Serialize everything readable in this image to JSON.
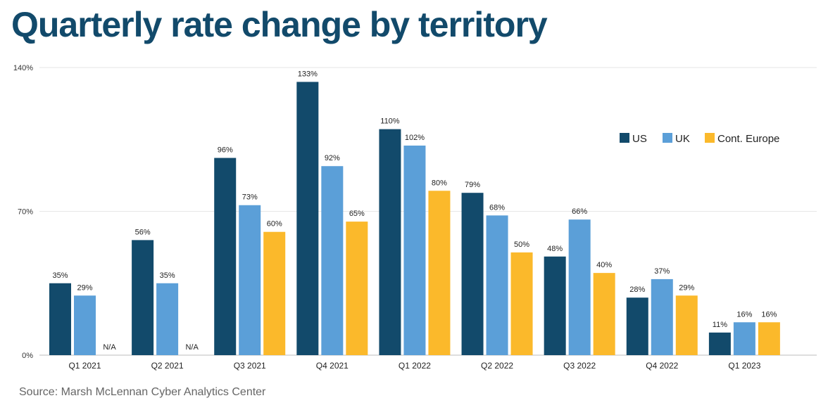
{
  "title": "Quarterly rate change by territory",
  "source": "Source: Marsh McLennan Cyber Analytics Center",
  "chart_data": {
    "type": "bar",
    "title": "Quarterly rate change by territory",
    "xlabel": "",
    "ylabel": "",
    "ylim": [
      0,
      140
    ],
    "yticks": [
      0,
      70,
      140
    ],
    "ytick_labels": [
      "0%",
      "70%",
      "140%"
    ],
    "grid": true,
    "legend_position": "top-right",
    "categories": [
      "Q1 2021",
      "Q2 2021",
      "Q3 2021",
      "Q4 2021",
      "Q1 2022",
      "Q2 2022",
      "Q3 2022",
      "Q4 2022",
      "Q1 2023"
    ],
    "series": [
      {
        "name": "US",
        "color": "#124a6b",
        "values": [
          35,
          56,
          96,
          133,
          110,
          79,
          48,
          28,
          11
        ],
        "labels": [
          "35%",
          "56%",
          "96%",
          "133%",
          "110%",
          "79%",
          "48%",
          "28%",
          "11%"
        ]
      },
      {
        "name": "UK",
        "color": "#5b9fd8",
        "values": [
          29,
          35,
          73,
          92,
          102,
          68,
          66,
          37,
          16
        ],
        "labels": [
          "29%",
          "35%",
          "73%",
          "92%",
          "102%",
          "68%",
          "66%",
          "37%",
          "16%"
        ]
      },
      {
        "name": "Cont. Europe",
        "color": "#fbb92b",
        "values": [
          null,
          null,
          60,
          65,
          80,
          50,
          40,
          29,
          16
        ],
        "labels": [
          "N/A",
          "N/A",
          "60%",
          "65%",
          "80%",
          "50%",
          "40%",
          "29%",
          "16%"
        ]
      }
    ]
  }
}
